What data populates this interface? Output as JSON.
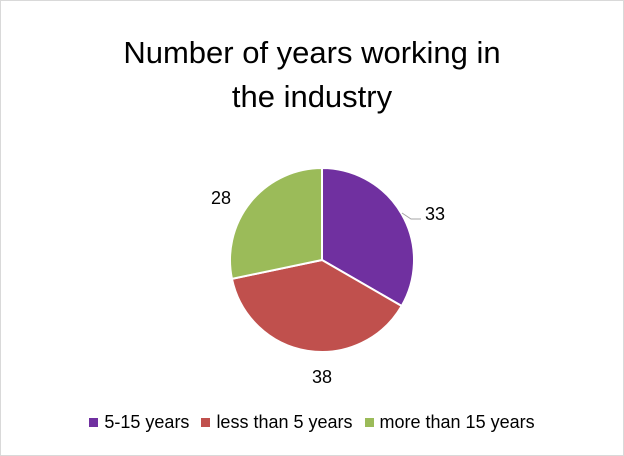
{
  "chart_data": {
    "type": "pie",
    "title": "Number of years working in the industry",
    "title_lines": [
      "Number of years working in",
      "the industry"
    ],
    "categories": [
      "5-15 years",
      "less than 5 years",
      "more than 15 years"
    ],
    "values": [
      33,
      38,
      28
    ],
    "data_labels": [
      "33",
      "38",
      "28"
    ],
    "colors": [
      "#7030a0",
      "#c0504d",
      "#9bbb59"
    ],
    "legend_position": "bottom"
  }
}
